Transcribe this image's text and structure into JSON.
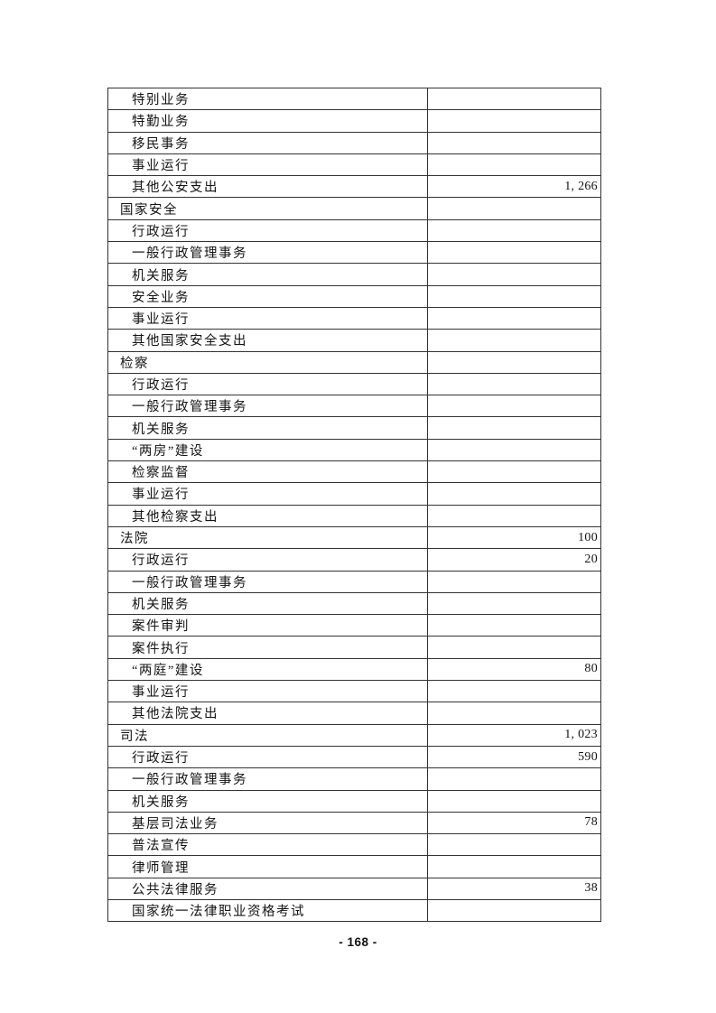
{
  "page": {
    "footer_page_number": "- 168 -"
  },
  "table": {
    "description": "Budget expenditure table (continuation page, two columns: item name, amount)",
    "rows": [
      {
        "label": "特别业务",
        "indent": 2,
        "value": ""
      },
      {
        "label": "特勤业务",
        "indent": 2,
        "value": ""
      },
      {
        "label": "移民事务",
        "indent": 2,
        "value": ""
      },
      {
        "label": "事业运行",
        "indent": 2,
        "value": ""
      },
      {
        "label": "其他公安支出",
        "indent": 2,
        "value": "1, 266"
      },
      {
        "label": "国家安全",
        "indent": 1,
        "value": ""
      },
      {
        "label": "行政运行",
        "indent": 2,
        "value": ""
      },
      {
        "label": "一般行政管理事务",
        "indent": 2,
        "value": ""
      },
      {
        "label": "机关服务",
        "indent": 2,
        "value": ""
      },
      {
        "label": "安全业务",
        "indent": 2,
        "value": ""
      },
      {
        "label": "事业运行",
        "indent": 2,
        "value": ""
      },
      {
        "label": "其他国家安全支出",
        "indent": 2,
        "value": ""
      },
      {
        "label": "检察",
        "indent": 1,
        "value": ""
      },
      {
        "label": "行政运行",
        "indent": 2,
        "value": ""
      },
      {
        "label": "一般行政管理事务",
        "indent": 2,
        "value": ""
      },
      {
        "label": "机关服务",
        "indent": 2,
        "value": ""
      },
      {
        "label": "“两房”建设",
        "indent": 2,
        "value": ""
      },
      {
        "label": "检察监督",
        "indent": 2,
        "value": ""
      },
      {
        "label": "事业运行",
        "indent": 2,
        "value": ""
      },
      {
        "label": "其他检察支出",
        "indent": 2,
        "value": ""
      },
      {
        "label": "法院",
        "indent": 1,
        "value": "100"
      },
      {
        "label": "行政运行",
        "indent": 2,
        "value": "20"
      },
      {
        "label": "一般行政管理事务",
        "indent": 2,
        "value": ""
      },
      {
        "label": "机关服务",
        "indent": 2,
        "value": ""
      },
      {
        "label": "案件审判",
        "indent": 2,
        "value": ""
      },
      {
        "label": "案件执行",
        "indent": 2,
        "value": ""
      },
      {
        "label": "“两庭”建设",
        "indent": 2,
        "value": "80"
      },
      {
        "label": "事业运行",
        "indent": 2,
        "value": ""
      },
      {
        "label": "其他法院支出",
        "indent": 2,
        "value": ""
      },
      {
        "label": "司法",
        "indent": 1,
        "value": "1, 023"
      },
      {
        "label": "行政运行",
        "indent": 2,
        "value": "590"
      },
      {
        "label": "一般行政管理事务",
        "indent": 2,
        "value": ""
      },
      {
        "label": "机关服务",
        "indent": 2,
        "value": ""
      },
      {
        "label": "基层司法业务",
        "indent": 2,
        "value": "78"
      },
      {
        "label": "普法宣传",
        "indent": 2,
        "value": ""
      },
      {
        "label": "律师管理",
        "indent": 2,
        "value": ""
      },
      {
        "label": "公共法律服务",
        "indent": 2,
        "value": "38"
      },
      {
        "label": "国家统一法律职业资格考试",
        "indent": 2,
        "value": ""
      }
    ]
  }
}
